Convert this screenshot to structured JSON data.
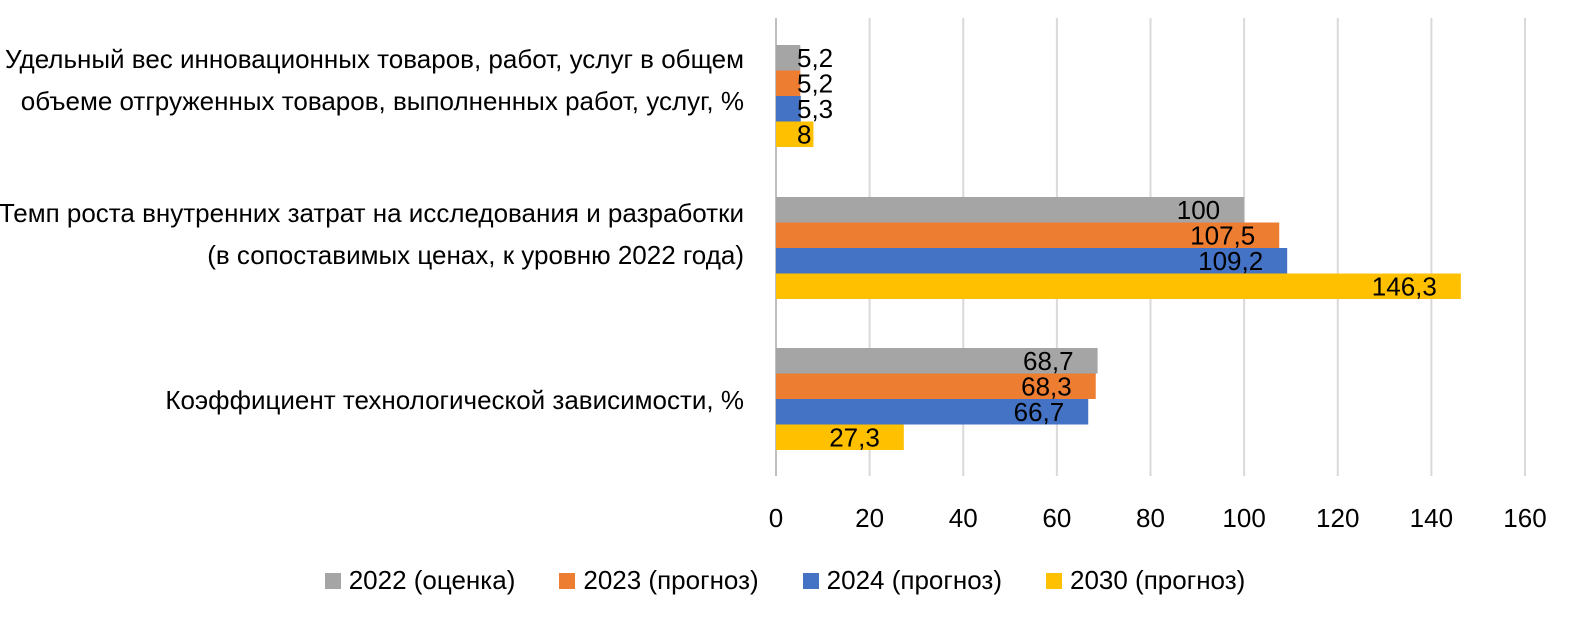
{
  "chart_data": {
    "type": "bar",
    "orientation": "horizontal",
    "categories": [
      "Удельный вес инновационных товаров, работ, услуг в общем объеме отгруженных товаров, выполненных работ, услуг, %",
      "Темп роста внутренних затрат на исследования и разработки (в сопоставимых ценах, к уровню 2022 года)",
      "Коэффициент технологической зависимости, %"
    ],
    "series": [
      {
        "name": "2022 (оценка)",
        "color": "#a5a5a5",
        "values": [
          5.2,
          100,
          68.7
        ],
        "labels": [
          "5,2",
          "100",
          "68,7"
        ]
      },
      {
        "name": "2023 (прогноз)",
        "color": "#ed7d31",
        "values": [
          5.2,
          107.5,
          68.3
        ],
        "labels": [
          "5,2",
          "107,5",
          "68,3"
        ]
      },
      {
        "name": "2024 (прогноз)",
        "color": "#4472c4",
        "values": [
          5.3,
          109.2,
          66.7
        ],
        "labels": [
          "5,3",
          "109,2",
          "66,7"
        ]
      },
      {
        "name": "2030 (прогноз)",
        "color": "#ffc000",
        "values": [
          8,
          146.3,
          27.3
        ],
        "labels": [
          "8",
          "146,3",
          "27,3"
        ]
      }
    ],
    "xlim": [
      0,
      160
    ],
    "xticks": [
      "0",
      "20",
      "40",
      "60",
      "80",
      "100",
      "120",
      "140",
      "160"
    ],
    "grid": true,
    "legend": "bottom",
    "title": ""
  }
}
